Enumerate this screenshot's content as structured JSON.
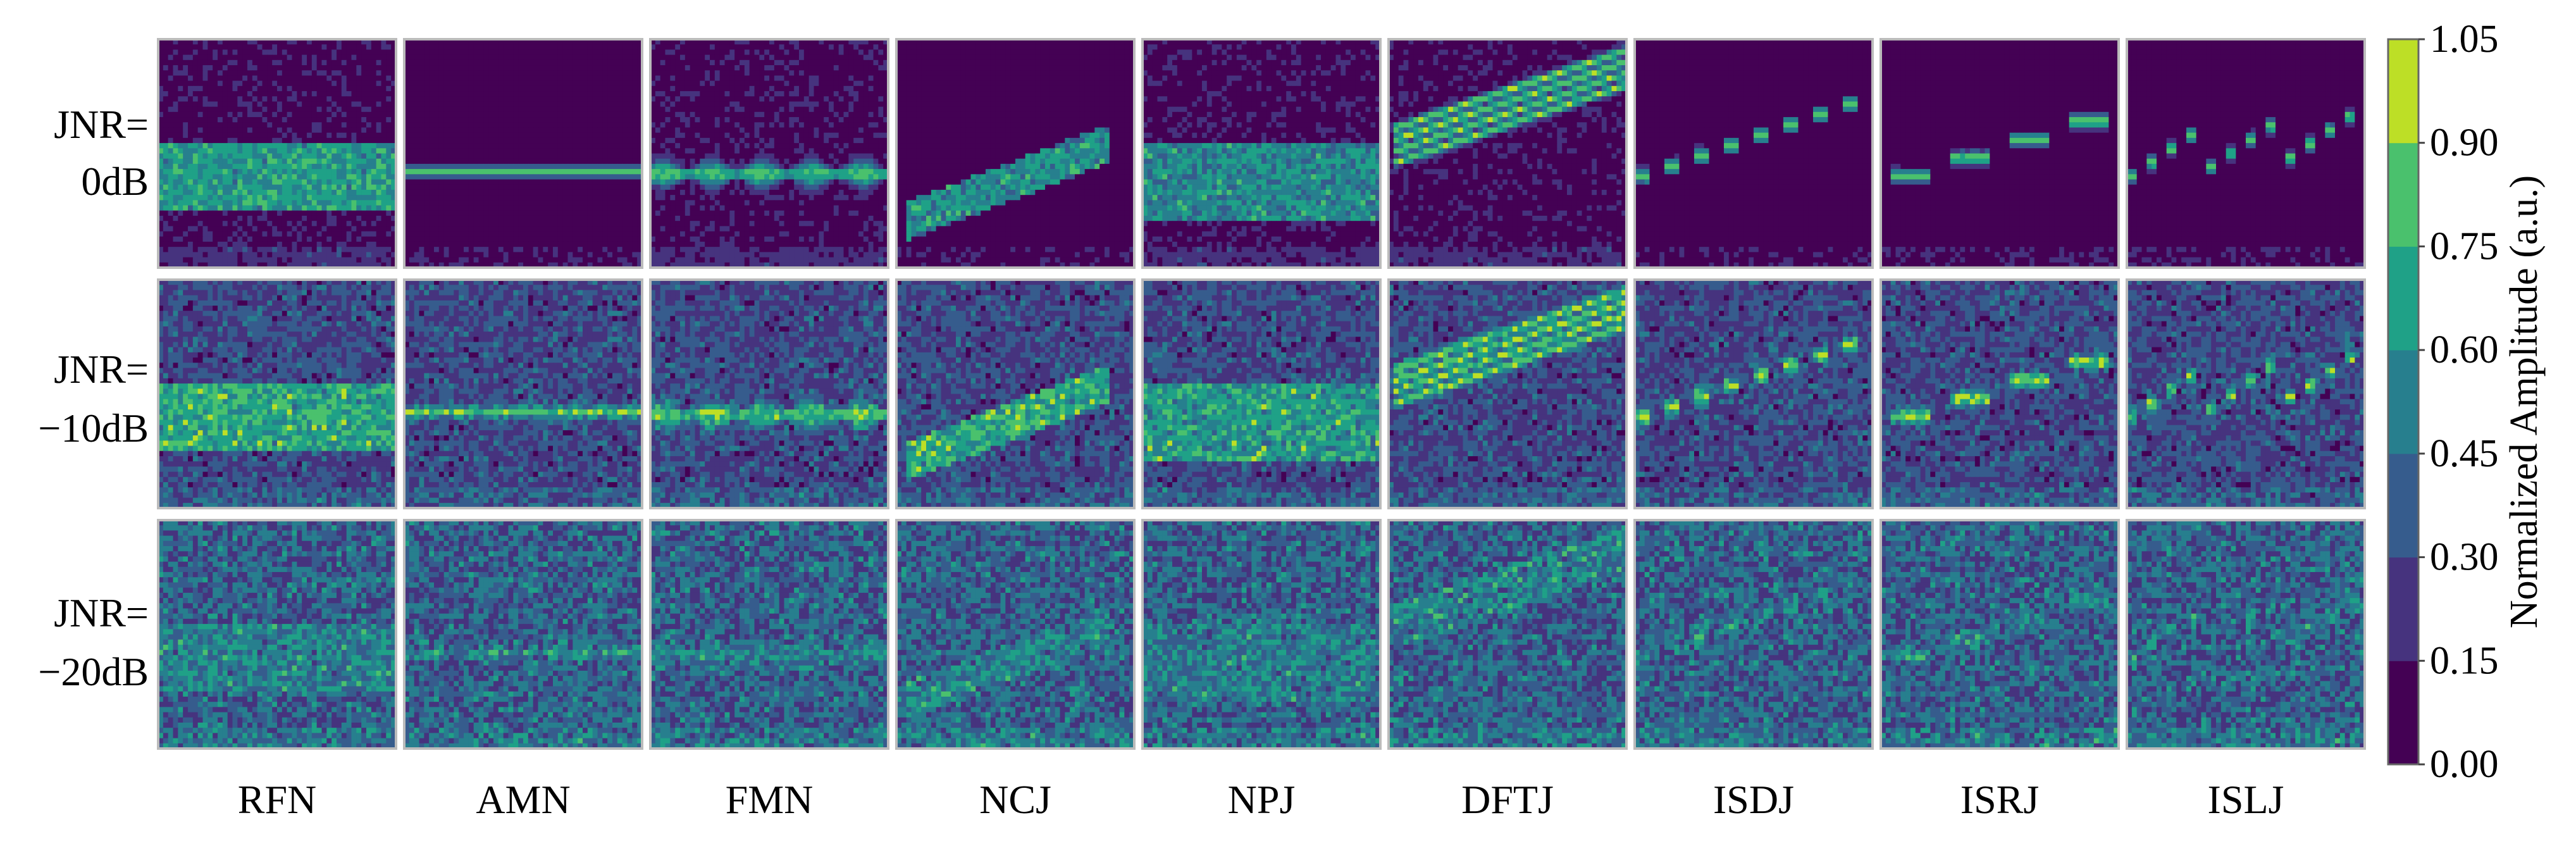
{
  "chart_data": {
    "type": "heatmap",
    "title": "",
    "columns": [
      "RFN",
      "AMN",
      "FMN",
      "NCJ",
      "NPJ",
      "DFTJ",
      "ISDJ",
      "ISRJ",
      "ISLJ"
    ],
    "rows": [
      {
        "label_line1": "JNR=",
        "label_line2": "0dB",
        "jnr_db": 0
      },
      {
        "label_line1": "JNR=",
        "label_line2": "−10dB",
        "jnr_db": -10
      },
      {
        "label_line1": "JNR=",
        "label_line2": "−20dB",
        "jnr_db": -20
      }
    ],
    "colorbar": {
      "label": "Normalized Amplitude (a.u.)",
      "range": [
        0.0,
        1.05
      ],
      "ticks": [
        "1.05",
        "0.90",
        "0.75",
        "0.60",
        "0.45",
        "0.30",
        "0.15",
        "0.00"
      ],
      "levels": 7,
      "colors": [
        "#440154",
        "#3b528b",
        "#21908c",
        "#1f9e89",
        "#35b779",
        "#28c95a",
        "#bcd92d"
      ]
    },
    "grid": false,
    "legend": "colorbar-right"
  }
}
